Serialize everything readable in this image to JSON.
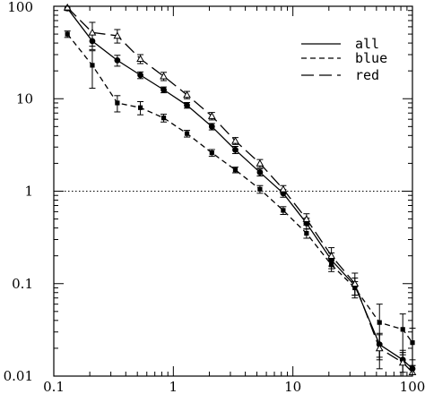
{
  "chart_data": {
    "type": "line",
    "title": "",
    "xlabel": "",
    "ylabel": "",
    "x_scale": "log",
    "y_scale": "log",
    "xlim": [
      0.1,
      100
    ],
    "ylim": [
      0.01,
      100
    ],
    "x_tick_labels": [
      "0.1",
      "1",
      "10",
      "100"
    ],
    "y_tick_labels": [
      "0.01",
      "0.1",
      "1",
      "10",
      "100"
    ],
    "x_tick_values": [
      0.1,
      1,
      10,
      100
    ],
    "y_tick_values": [
      0.01,
      0.1,
      1,
      10,
      100
    ],
    "reference_line": {
      "y": 1,
      "style": "dotted"
    },
    "legend": {
      "placement": "top-right"
    },
    "series": [
      {
        "name": "all",
        "line_style": "solid",
        "marker": "circle",
        "x": [
          0.13,
          0.21,
          0.34,
          0.53,
          0.83,
          1.3,
          2.1,
          3.3,
          5.3,
          8.3,
          13,
          21,
          33,
          53,
          83,
          100
        ],
        "y": [
          95,
          42,
          26,
          18,
          12.5,
          8.5,
          5.0,
          2.8,
          1.6,
          0.95,
          0.45,
          0.18,
          0.095,
          0.022,
          0.015,
          0.012
        ],
        "err": [
          5,
          8,
          3.5,
          1.5,
          0.9,
          0.6,
          0.4,
          0.25,
          0.14,
          0.09,
          0.06,
          0.035,
          0.02,
          0.007,
          0.004,
          0.003
        ]
      },
      {
        "name": "blue",
        "line_style": "short-dash",
        "marker": "square",
        "x": [
          0.13,
          0.21,
          0.34,
          0.53,
          0.83,
          1.3,
          2.1,
          3.3,
          5.3,
          8.3,
          13,
          21,
          33,
          53,
          83,
          100
        ],
        "y": [
          50,
          23,
          9.0,
          8.0,
          6.2,
          4.2,
          2.6,
          1.7,
          1.05,
          0.62,
          0.35,
          0.16,
          0.09,
          0.038,
          0.032,
          0.023
        ],
        "err": [
          4,
          10,
          1.8,
          1.3,
          0.6,
          0.35,
          0.22,
          0.12,
          0.1,
          0.06,
          0.04,
          0.025,
          0.015,
          0.022,
          0.015,
          0.01
        ]
      },
      {
        "name": "red",
        "line_style": "long-dash",
        "marker": "triangle",
        "x": [
          0.13,
          0.21,
          0.34,
          0.53,
          0.83,
          1.3,
          2.1,
          3.3,
          5.3,
          8.3,
          13,
          21,
          33,
          53,
          83,
          100
        ],
        "y": [
          97,
          52,
          48,
          27,
          17.5,
          11,
          6.5,
          3.5,
          2.0,
          1.05,
          0.5,
          0.2,
          0.1,
          0.02,
          0.014,
          0.011
        ],
        "err": [
          5,
          15,
          8,
          3,
          1.8,
          1.0,
          0.6,
          0.3,
          0.2,
          0.1,
          0.07,
          0.045,
          0.03,
          0.008,
          0.004,
          0.002
        ]
      }
    ]
  }
}
